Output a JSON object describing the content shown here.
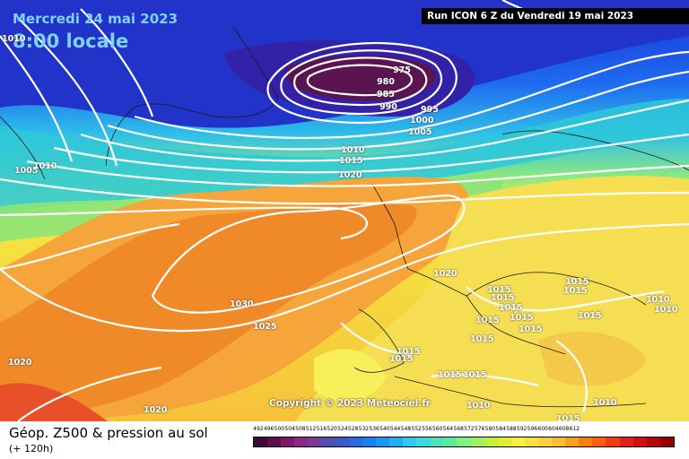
{
  "map": {
    "date_label": "Mercredi 24 mai 2023",
    "time_label": "8:00 locale",
    "run_label": "Run ICON 6 Z du Vendredi 19 mai 2023",
    "copyright": "Copyright © 2023 Meteociel.fr",
    "pressure_labels": [
      {
        "text": "975"
      },
      {
        "text": "980"
      },
      {
        "text": "985"
      },
      {
        "text": "990"
      },
      {
        "text": "995"
      },
      {
        "text": "1000"
      },
      {
        "text": "1005"
      },
      {
        "text": "1010"
      },
      {
        "text": "1015"
      },
      {
        "text": "1020"
      },
      {
        "text": "1010"
      },
      {
        "text": "1005"
      },
      {
        "text": "1010"
      },
      {
        "text": "1020"
      },
      {
        "text": "1030"
      },
      {
        "text": "1025"
      },
      {
        "text": "1020"
      },
      {
        "text": "1020"
      },
      {
        "text": "1015"
      },
      {
        "text": "1015"
      },
      {
        "text": "1015"
      },
      {
        "text": "1015"
      },
      {
        "text": "1015"
      },
      {
        "text": "1015"
      },
      {
        "text": "1015"
      },
      {
        "text": "1015"
      },
      {
        "text": "1015"
      },
      {
        "text": "1015"
      },
      {
        "text": "1015"
      },
      {
        "text": "1015"
      },
      {
        "text": "1015"
      },
      {
        "text": "1010"
      },
      {
        "text": "1010"
      },
      {
        "text": "1010"
      },
      {
        "text": "1010"
      },
      {
        "text": "1015"
      },
      {
        "text": "1015"
      }
    ]
  },
  "footer": {
    "title": "Géop. Z500 & pression au sol",
    "subtitle": "(+ 120h)",
    "scale_labels": [
      "492",
      "496",
      "500",
      "504",
      "508",
      "512",
      "516",
      "520",
      "524",
      "528",
      "532",
      "536",
      "540",
      "544",
      "548",
      "552",
      "556",
      "560",
      "564",
      "568",
      "572",
      "576",
      "580",
      "584",
      "588",
      "592",
      "596",
      "600",
      "604",
      "608",
      "612"
    ],
    "scale_colors": [
      "#3a0a3a",
      "#5a1050",
      "#7a1a6a",
      "#8a2a80",
      "#7a3a9a",
      "#5050b0",
      "#3a5ac8",
      "#2a6ae0",
      "#1a80f0",
      "#1898f0",
      "#20b0f0",
      "#30c8f0",
      "#40d8e0",
      "#50e0c0",
      "#60e8a0",
      "#80f080",
      "#a0f060",
      "#c0f040",
      "#e0f030",
      "#f8f040",
      "#f8e040",
      "#f8d040",
      "#f8c030",
      "#f8a020",
      "#f88010",
      "#f86010",
      "#f04010",
      "#e02020",
      "#d01010",
      "#b00808",
      "#900000"
    ]
  }
}
